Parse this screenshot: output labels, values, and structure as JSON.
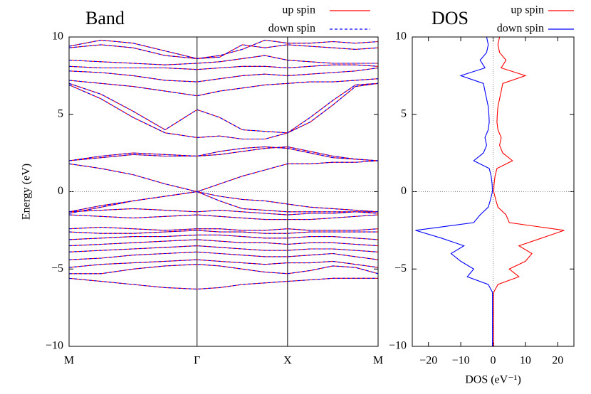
{
  "chart_data": [
    {
      "type": "band",
      "title": "Band",
      "ylabel": "Energy (eV)",
      "x": [
        0,
        0.354,
        0.707,
        1.061,
        1.414,
        1.664,
        1.914,
        2.164,
        2.414,
        2.664,
        2.914,
        3.164,
        3.414
      ],
      "xlim": [
        0,
        3.414
      ],
      "xticks": [
        {
          "value": 0,
          "label": "M"
        },
        {
          "value": 1.414,
          "label": "Γ"
        },
        {
          "value": 2.414,
          "label": "X"
        },
        {
          "value": 3.414,
          "label": "M"
        }
      ],
      "xgrid": true,
      "ylim": [
        -10,
        10
      ],
      "yticks": [
        {
          "value": -10,
          "label": "−10"
        },
        {
          "value": -5,
          "label": "−5"
        },
        0,
        5,
        10
      ],
      "zero_line": true,
      "series": [
        {
          "name": "up spin",
          "color": "#ff0000",
          "dashed": false
        },
        {
          "name": "down spin",
          "color": "#0000ff",
          "dashed": true
        }
      ],
      "bands": [
        [
          -5.6,
          -5.8,
          -6.0,
          -6.2,
          -6.3,
          -6.2,
          -6.0,
          -5.9,
          -5.8,
          -5.7,
          -5.6,
          -5.6,
          -5.6
        ],
        [
          -5.3,
          -5.3,
          -5.0,
          -4.8,
          -4.7,
          -4.8,
          -5.0,
          -5.2,
          -5.3,
          -5.1,
          -4.8,
          -4.9,
          -5.3
        ],
        [
          -4.9,
          -4.7,
          -4.6,
          -4.5,
          -4.4,
          -4.5,
          -4.6,
          -4.7,
          -4.6,
          -4.6,
          -4.5,
          -4.7,
          -4.9
        ],
        [
          -4.4,
          -4.3,
          -4.1,
          -4.0,
          -3.9,
          -4.0,
          -4.1,
          -4.2,
          -4.2,
          -4.1,
          -4.0,
          -4.2,
          -4.4
        ],
        [
          -3.9,
          -3.8,
          -3.7,
          -3.6,
          -3.5,
          -3.6,
          -3.7,
          -3.8,
          -3.8,
          -3.7,
          -3.7,
          -3.8,
          -3.9
        ],
        [
          -3.5,
          -3.4,
          -3.3,
          -3.2,
          -3.1,
          -3.2,
          -3.3,
          -3.3,
          -3.4,
          -3.3,
          -3.3,
          -3.4,
          -3.5
        ],
        [
          -3.1,
          -3.0,
          -2.9,
          -2.9,
          -2.8,
          -2.8,
          -2.9,
          -3.0,
          -3.0,
          -2.9,
          -2.9,
          -3.0,
          -3.1
        ],
        [
          -2.6,
          -2.7,
          -2.7,
          -2.6,
          -2.5,
          -2.6,
          -2.6,
          -2.7,
          -2.7,
          -2.6,
          -2.6,
          -2.6,
          -2.6
        ],
        [
          -2.4,
          -2.3,
          -2.4,
          -2.5,
          -2.4,
          -2.4,
          -2.5,
          -2.5,
          -2.4,
          -2.5,
          -2.5,
          -2.5,
          -2.4
        ],
        [
          -1.5,
          -1.6,
          -1.7,
          -1.6,
          -1.5,
          -1.6,
          -1.7,
          -1.8,
          -1.8,
          -1.8,
          -1.7,
          -1.6,
          -1.5
        ],
        [
          -1.3,
          -1.2,
          -1.1,
          -1.2,
          -1.3,
          -1.2,
          -1.3,
          -1.4,
          -1.5,
          -1.4,
          -1.4,
          -1.3,
          -1.3
        ],
        [
          -1.3,
          -0.9,
          -0.6,
          -0.3,
          0,
          -0.3,
          -0.5,
          -0.6,
          -0.8,
          -1.0,
          -1.1,
          -1.2,
          -1.3
        ],
        [
          -1.4,
          -1.0,
          -0.6,
          -0.3,
          0,
          -0.6,
          -1.1,
          -1.2,
          -1.3,
          -1.3,
          -1.3,
          -1.3,
          -1.4
        ],
        [
          1.8,
          1.5,
          1.1,
          0.5,
          0,
          0.5,
          1.0,
          1.4,
          1.8,
          1.8,
          1.9,
          1.9,
          2.0
        ],
        [
          2.0,
          2.2,
          2.4,
          2.3,
          2.3,
          2.4,
          2.6,
          2.8,
          2.9,
          2.6,
          2.3,
          2.1,
          2.0
        ],
        [
          2.0,
          2.3,
          2.5,
          2.4,
          2.3,
          2.6,
          2.8,
          2.9,
          2.8,
          2.5,
          2.2,
          2.1,
          2.0
        ],
        [
          6.9,
          6.0,
          4.8,
          3.8,
          3.5,
          3.6,
          3.4,
          3.4,
          3.8,
          4.5,
          5.6,
          6.8,
          7.0
        ],
        [
          7.0,
          6.3,
          5.2,
          4.0,
          5.3,
          4.8,
          4.0,
          3.9,
          3.8,
          4.8,
          5.9,
          6.9,
          7.0
        ],
        [
          7.2,
          7.0,
          6.8,
          6.5,
          6.2,
          6.5,
          6.7,
          6.9,
          7.0,
          7.1,
          7.1,
          7.2,
          7.3
        ],
        [
          7.8,
          7.7,
          7.5,
          7.2,
          7.1,
          7.3,
          7.5,
          7.6,
          7.5,
          7.6,
          7.7,
          7.8,
          8.0
        ],
        [
          8.1,
          8.0,
          8.0,
          8.0,
          7.9,
          8.0,
          8.1,
          8.1,
          8.0,
          8.1,
          8.2,
          8.2,
          8.1
        ],
        [
          8.5,
          8.4,
          8.3,
          8.2,
          8.3,
          8.4,
          8.6,
          8.8,
          8.5,
          8.4,
          8.3,
          8.3,
          8.3
        ],
        [
          9.3,
          9.5,
          9.3,
          8.8,
          8.6,
          8.7,
          9.5,
          9.3,
          9.5,
          9.4,
          9.3,
          9.2,
          9.3
        ],
        [
          9.4,
          9.8,
          9.6,
          9.1,
          8.6,
          8.8,
          9.2,
          9.8,
          9.6,
          9.6,
          9.7,
          9.6,
          9.7
        ]
      ]
    },
    {
      "type": "dos",
      "title": "DOS",
      "xlabel": "DOS (eV⁻¹)",
      "energy": [
        -10,
        -9.5,
        -9,
        -8.5,
        -8,
        -7.5,
        -7,
        -6.5,
        -6,
        -5.5,
        -5,
        -4.5,
        -4,
        -3.5,
        -3,
        -2.5,
        -2,
        -1.5,
        -1,
        -0.5,
        0,
        0.5,
        1,
        1.5,
        2,
        2.5,
        3,
        3.5,
        4,
        4.5,
        5,
        5.5,
        6,
        6.5,
        7,
        7.5,
        8,
        8.5,
        9,
        9.5,
        10
      ],
      "xlim": [
        -25,
        25
      ],
      "xticks": [
        {
          "value": -20,
          "label": "−20"
        },
        {
          "value": -10,
          "label": "−10"
        },
        0,
        10,
        20
      ],
      "ylim": [
        -10,
        10
      ],
      "yticks": [
        {
          "value": -10,
          "label": "−10"
        },
        {
          "value": -5,
          "label": "−5"
        },
        0,
        5,
        10
      ],
      "zero_line": true,
      "series": [
        {
          "name": "up spin",
          "color": "#ff0000",
          "values": [
            0.2,
            0.2,
            0.2,
            0.2,
            0.2,
            0.2,
            0.2,
            0.2,
            1.5,
            8,
            5,
            10,
            12,
            8,
            15,
            22,
            5,
            4,
            1.5,
            0.8,
            0.2,
            0.3,
            0.6,
            1.2,
            6,
            3,
            2,
            2.5,
            1.5,
            1.2,
            1.3,
            1.5,
            2,
            2.5,
            3,
            10,
            2.5,
            4,
            2,
            1.5,
            2
          ]
        },
        {
          "name": "down spin",
          "color": "#0000ff",
          "values": [
            -0.2,
            -0.2,
            -0.2,
            -0.2,
            -0.2,
            -0.2,
            -0.2,
            -0.2,
            -1.5,
            -8,
            -6,
            -10,
            -13,
            -9,
            -16,
            -24,
            -6,
            -4,
            -1.5,
            -0.8,
            -0.2,
            -0.3,
            -0.6,
            -1.2,
            -6,
            -3,
            -2,
            -2.5,
            -1.5,
            -1.2,
            -1.3,
            -1.5,
            -2,
            -2.5,
            -3,
            -10,
            -2.5,
            -4,
            -2,
            -1.5,
            -2
          ]
        }
      ]
    }
  ]
}
